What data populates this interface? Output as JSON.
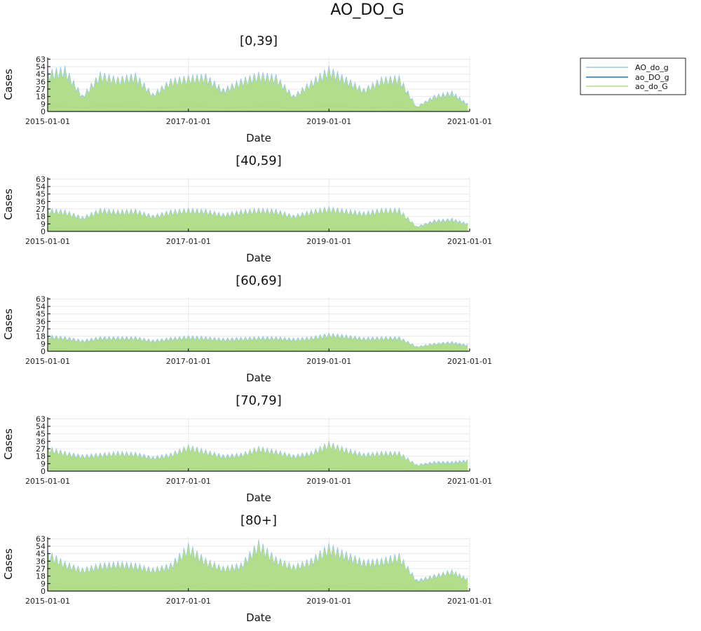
{
  "figure": {
    "title": "AO_DO_G"
  },
  "chart_data": [
    {
      "type": "line",
      "title": "[0,39]",
      "xlabel": "Date",
      "ylabel": "Cases",
      "x_ticks": [
        "2015-01-01",
        "2017-01-01",
        "2019-01-01",
        "2021-01-01"
      ],
      "y_ticks": [
        0,
        9,
        18,
        27,
        36,
        45,
        54,
        63
      ],
      "xlim": [
        "2015-01-01",
        "2021-01-01"
      ],
      "ylim": [
        0,
        65
      ],
      "grid": true,
      "legend": "outside-right",
      "envelope_x": [
        "2015-01-01",
        "2015-04-01",
        "2015-07-01",
        "2015-10-01",
        "2016-01-01",
        "2016-04-01",
        "2016-07-01",
        "2016-10-01",
        "2017-01-01",
        "2017-04-01",
        "2017-07-01",
        "2017-10-01",
        "2018-01-01",
        "2018-04-01",
        "2018-07-01",
        "2018-10-01",
        "2019-01-01",
        "2019-04-01",
        "2019-07-01",
        "2019-10-01",
        "2020-01-01",
        "2020-04-01",
        "2020-07-01",
        "2020-10-01",
        "2020-12-20"
      ],
      "series": [
        {
          "name": "AO_do_g",
          "values": [
            50,
            55,
            20,
            48,
            42,
            47,
            22,
            40,
            44,
            46,
            28,
            40,
            48,
            45,
            20,
            38,
            55,
            42,
            28,
            42,
            44,
            6,
            20,
            25,
            10
          ]
        },
        {
          "name": "ao_DO_g",
          "values": [
            8,
            7,
            5,
            8,
            7,
            7,
            5,
            6,
            7,
            7,
            5,
            6,
            7,
            7,
            4,
            6,
            8,
            7,
            5,
            6,
            7,
            1,
            3,
            4,
            2
          ]
        },
        {
          "name": "ao_do_G",
          "values": [
            46,
            50,
            18,
            44,
            39,
            43,
            20,
            37,
            41,
            42,
            25,
            37,
            44,
            41,
            18,
            35,
            50,
            38,
            26,
            39,
            40,
            5,
            18,
            22,
            8
          ]
        }
      ]
    },
    {
      "type": "line",
      "title": "[40,59]",
      "xlabel": "Date",
      "ylabel": "Cases",
      "x_ticks": [
        "2015-01-01",
        "2017-01-01",
        "2019-01-01",
        "2021-01-01"
      ],
      "y_ticks": [
        0,
        9,
        18,
        27,
        36,
        45,
        54,
        63
      ],
      "xlim": [
        "2015-01-01",
        "2021-01-01"
      ],
      "ylim": [
        0,
        65
      ],
      "grid": true,
      "envelope_x": [
        "2015-01-01",
        "2015-04-01",
        "2015-07-01",
        "2015-10-01",
        "2016-01-01",
        "2016-04-01",
        "2016-07-01",
        "2016-10-01",
        "2017-01-01",
        "2017-04-01",
        "2017-07-01",
        "2017-10-01",
        "2018-01-01",
        "2018-04-01",
        "2018-07-01",
        "2018-10-01",
        "2019-01-01",
        "2019-04-01",
        "2019-07-01",
        "2019-10-01",
        "2020-01-01",
        "2020-04-01",
        "2020-07-01",
        "2020-10-01",
        "2020-12-20"
      ],
      "series": [
        {
          "name": "AO_do_g",
          "values": [
            28,
            26,
            18,
            28,
            26,
            27,
            20,
            26,
            28,
            27,
            22,
            26,
            28,
            27,
            20,
            26,
            30,
            27,
            24,
            28,
            28,
            6,
            14,
            16,
            10
          ]
        },
        {
          "name": "ao_DO_g",
          "values": [
            4,
            4,
            3,
            4,
            4,
            4,
            3,
            4,
            4,
            4,
            3,
            4,
            4,
            4,
            3,
            4,
            4,
            4,
            3,
            4,
            4,
            1,
            2,
            2,
            1
          ]
        },
        {
          "name": "ao_do_G",
          "values": [
            26,
            24,
            16,
            26,
            24,
            25,
            18,
            24,
            26,
            25,
            20,
            24,
            26,
            25,
            18,
            24,
            28,
            25,
            22,
            26,
            26,
            5,
            12,
            14,
            8
          ]
        }
      ]
    },
    {
      "type": "line",
      "title": "[60,69]",
      "xlabel": "Date",
      "ylabel": "Cases",
      "x_ticks": [
        "2015-01-01",
        "2017-01-01",
        "2019-01-01",
        "2021-01-01"
      ],
      "y_ticks": [
        0,
        9,
        18,
        27,
        36,
        45,
        54,
        63
      ],
      "xlim": [
        "2015-01-01",
        "2021-01-01"
      ],
      "ylim": [
        0,
        65
      ],
      "grid": true,
      "envelope_x": [
        "2015-01-01",
        "2015-04-01",
        "2015-07-01",
        "2015-10-01",
        "2016-01-01",
        "2016-04-01",
        "2016-07-01",
        "2016-10-01",
        "2017-01-01",
        "2017-04-01",
        "2017-07-01",
        "2017-10-01",
        "2018-01-01",
        "2018-04-01",
        "2018-07-01",
        "2018-10-01",
        "2019-01-01",
        "2019-04-01",
        "2019-07-01",
        "2019-10-01",
        "2020-01-01",
        "2020-04-01",
        "2020-07-01",
        "2020-10-01",
        "2020-12-20"
      ],
      "series": [
        {
          "name": "AO_do_g",
          "values": [
            20,
            18,
            14,
            18,
            18,
            18,
            14,
            17,
            19,
            18,
            16,
            17,
            18,
            18,
            16,
            18,
            22,
            20,
            17,
            18,
            18,
            6,
            10,
            12,
            8
          ]
        },
        {
          "name": "ao_DO_g",
          "values": [
            3,
            3,
            2,
            3,
            3,
            3,
            2,
            3,
            3,
            3,
            2,
            3,
            3,
            3,
            2,
            3,
            3,
            3,
            2,
            3,
            3,
            1,
            1,
            2,
            1
          ]
        },
        {
          "name": "ao_do_G",
          "values": [
            18,
            16,
            12,
            16,
            16,
            16,
            12,
            15,
            17,
            16,
            14,
            15,
            16,
            16,
            14,
            16,
            20,
            18,
            15,
            16,
            16,
            5,
            9,
            10,
            6
          ]
        }
      ]
    },
    {
      "type": "line",
      "title": "[70,79]",
      "xlabel": "Date",
      "ylabel": "Cases",
      "x_ticks": [
        "2015-01-01",
        "2017-01-01",
        "2019-01-01",
        "2021-01-01"
      ],
      "y_ticks": [
        0,
        9,
        18,
        27,
        36,
        45,
        54,
        63
      ],
      "xlim": [
        "2015-01-01",
        "2021-01-01"
      ],
      "ylim": [
        0,
        65
      ],
      "grid": true,
      "envelope_x": [
        "2015-01-01",
        "2015-04-01",
        "2015-07-01",
        "2015-10-01",
        "2016-01-01",
        "2016-04-01",
        "2016-07-01",
        "2016-10-01",
        "2017-01-01",
        "2017-04-01",
        "2017-07-01",
        "2017-10-01",
        "2018-01-01",
        "2018-04-01",
        "2018-07-01",
        "2018-10-01",
        "2019-01-01",
        "2019-04-01",
        "2019-07-01",
        "2019-10-01",
        "2020-01-01",
        "2020-04-01",
        "2020-07-01",
        "2020-10-01",
        "2020-12-20"
      ],
      "series": [
        {
          "name": "AO_do_g",
          "values": [
            30,
            24,
            20,
            22,
            24,
            23,
            18,
            22,
            32,
            26,
            20,
            22,
            30,
            26,
            20,
            24,
            36,
            28,
            22,
            24,
            24,
            8,
            12,
            12,
            14
          ]
        },
        {
          "name": "ao_DO_g",
          "values": [
            4,
            3,
            3,
            3,
            3,
            3,
            2,
            3,
            4,
            3,
            3,
            3,
            4,
            3,
            3,
            3,
            4,
            3,
            3,
            3,
            3,
            1,
            2,
            2,
            2
          ]
        },
        {
          "name": "ao_do_G",
          "values": [
            28,
            22,
            18,
            20,
            22,
            21,
            16,
            20,
            30,
            24,
            18,
            20,
            28,
            24,
            18,
            22,
            34,
            26,
            20,
            22,
            22,
            7,
            10,
            10,
            12
          ]
        }
      ]
    },
    {
      "type": "line",
      "title": "[80+]",
      "xlabel": "Date",
      "ylabel": "Cases",
      "x_ticks": [
        "2015-01-01",
        "2017-01-01",
        "2019-01-01",
        "2021-01-01"
      ],
      "y_ticks": [
        0,
        9,
        18,
        27,
        36,
        45,
        54,
        63
      ],
      "xlim": [
        "2015-01-01",
        "2021-01-01"
      ],
      "ylim": [
        0,
        65
      ],
      "grid": true,
      "envelope_x": [
        "2015-01-01",
        "2015-04-01",
        "2015-07-01",
        "2015-10-01",
        "2016-01-01",
        "2016-04-01",
        "2016-07-01",
        "2016-10-01",
        "2017-01-01",
        "2017-04-01",
        "2017-07-01",
        "2017-10-01",
        "2018-01-01",
        "2018-04-01",
        "2018-07-01",
        "2018-10-01",
        "2019-01-01",
        "2019-04-01",
        "2019-07-01",
        "2019-10-01",
        "2020-01-01",
        "2020-04-01",
        "2020-07-01",
        "2020-10-01",
        "2020-12-20"
      ],
      "series": [
        {
          "name": "AO_do_g",
          "values": [
            50,
            36,
            28,
            34,
            36,
            34,
            28,
            34,
            58,
            40,
            30,
            34,
            62,
            42,
            32,
            40,
            58,
            48,
            38,
            40,
            46,
            14,
            20,
            26,
            16
          ]
        },
        {
          "name": "ao_DO_g",
          "values": [
            6,
            5,
            4,
            5,
            5,
            5,
            4,
            5,
            7,
            5,
            4,
            5,
            7,
            5,
            4,
            5,
            7,
            6,
            5,
            5,
            6,
            2,
            3,
            3,
            2
          ]
        },
        {
          "name": "ao_do_G",
          "values": [
            46,
            33,
            26,
            31,
            33,
            31,
            26,
            31,
            54,
            37,
            28,
            31,
            58,
            39,
            30,
            37,
            54,
            44,
            35,
            37,
            43,
            12,
            18,
            24,
            14
          ]
        }
      ]
    }
  ],
  "legend": {
    "entries": [
      {
        "label": "AO_do_g",
        "color": "#9ecae1"
      },
      {
        "label": "ao_DO_g",
        "color": "#1f77b4"
      },
      {
        "label": "ao_do_G",
        "color": "#b3de87"
      }
    ]
  }
}
